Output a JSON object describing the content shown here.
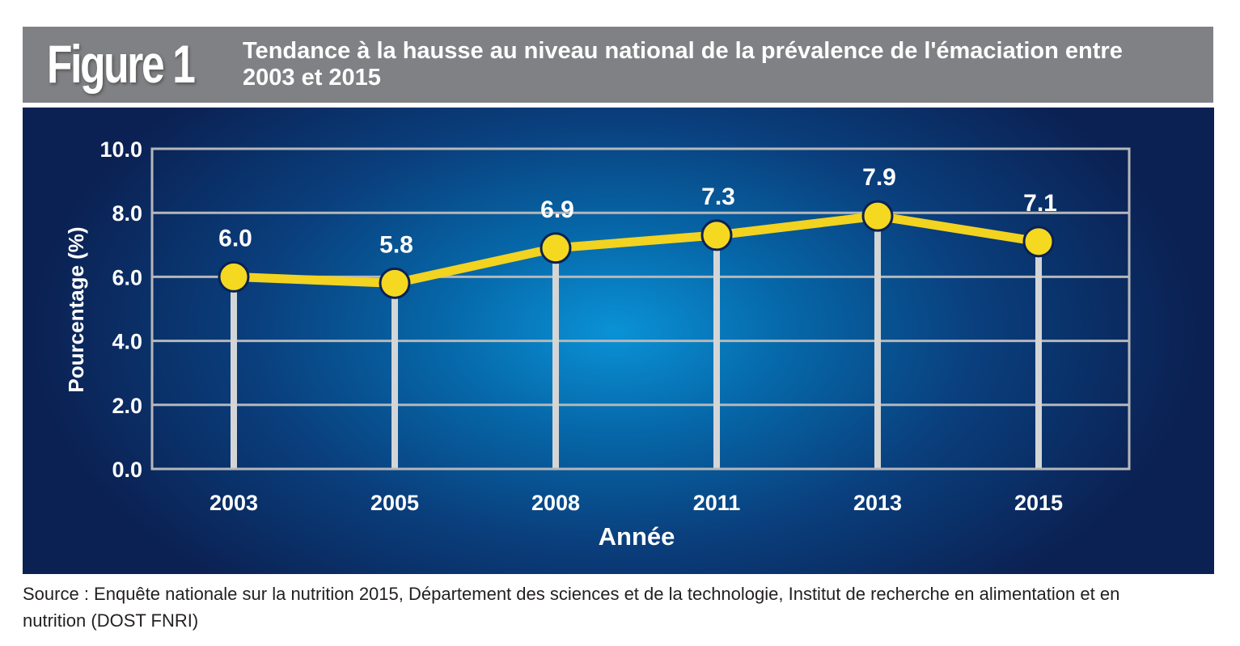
{
  "header": {
    "figure_label": "Figure 1",
    "title": "Tendance à la hausse au niveau national de la prévalence de l'émaciation entre 2003 et 2015"
  },
  "chart_data": {
    "type": "line",
    "categories": [
      "2003",
      "2005",
      "2008",
      "2011",
      "2013",
      "2015"
    ],
    "values": [
      6.0,
      5.8,
      6.9,
      7.3,
      7.9,
      7.1
    ],
    "data_labels": [
      "6.0",
      "5.8",
      "6.9",
      "7.3",
      "7.9",
      "7.1"
    ],
    "xlabel": "Année",
    "ylabel": "Pourcentage (%)",
    "ylim": [
      0,
      10
    ],
    "yticks": [
      "0.0",
      "2.0",
      "4.0",
      "6.0",
      "8.0",
      "10.0"
    ],
    "grid": true,
    "colors": {
      "line": "#f2d31f",
      "marker": "#f5d820",
      "marker_edge": "#0b2153",
      "grid": "#b5b7ba",
      "drop_lines": "#d4d5d7",
      "text": "#ffffff"
    }
  },
  "footer": {
    "source": "Source : Enquête nationale sur la nutrition 2015, Département des sciences et de la technologie, Institut de recherche en alimentation et en nutrition (DOST FNRI)"
  }
}
